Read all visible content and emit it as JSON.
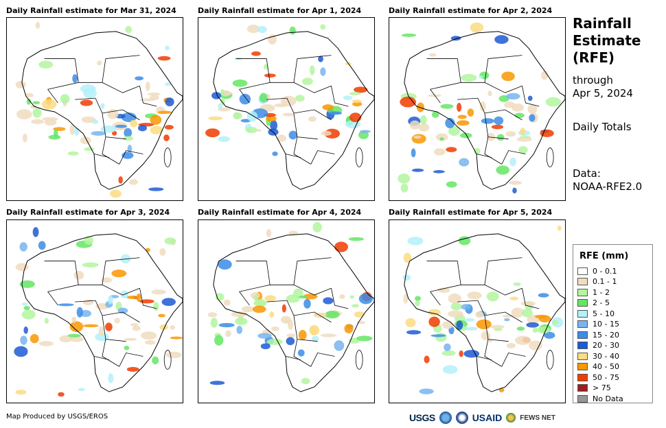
{
  "panels": [
    {
      "title": "Daily Rainfall estimate for Mar 31, 2024"
    },
    {
      "title": "Daily Rainfall estimate for Apr 1, 2024"
    },
    {
      "title": "Daily Rainfall estimate for Apr 2, 2024"
    },
    {
      "title": "Daily Rainfall estimate for Apr 3, 2024"
    },
    {
      "title": "Daily Rainfall estimate for Apr 4, 2024"
    },
    {
      "title": "Daily Rainfall estimate for Apr 5, 2024"
    }
  ],
  "sidebar": {
    "title_line1": "Rainfall",
    "title_line2": "Estimate",
    "title_line3": "(RFE)",
    "through_label": "through",
    "through_date": "Apr 5, 2024",
    "totals_label": "Daily Totals",
    "data_label": "Data:",
    "data_source": "NOAA-RFE2.0"
  },
  "legend": {
    "title": "RFE (mm)",
    "items": [
      {
        "label": "0 - 0.1",
        "color": "#ffffff"
      },
      {
        "label": "0.1 - 1",
        "color": "#f0dcc0"
      },
      {
        "label": "1 - 2",
        "color": "#b4f5a0"
      },
      {
        "label": "2 - 5",
        "color": "#64e664"
      },
      {
        "label": "5 - 10",
        "color": "#b4f0fa"
      },
      {
        "label": "10 - 15",
        "color": "#78b4f0"
      },
      {
        "label": "15 - 20",
        "color": "#3c8ce6"
      },
      {
        "label": "20 - 30",
        "color": "#1e5ad2"
      },
      {
        "label": "30 - 40",
        "color": "#fadc82"
      },
      {
        "label": "40 - 50",
        "color": "#fa9600"
      },
      {
        "label": "50 - 75",
        "color": "#f03c00"
      },
      {
        "label": "> 75",
        "color": "#a01e1e"
      },
      {
        "label": "No Data",
        "color": "#969696"
      }
    ]
  },
  "footer": {
    "credit": "Map Produced by USGS/EROS",
    "logo_usgs": "USGS",
    "logo_usaid": "USAID",
    "logo_fews": "FEWS NET"
  }
}
